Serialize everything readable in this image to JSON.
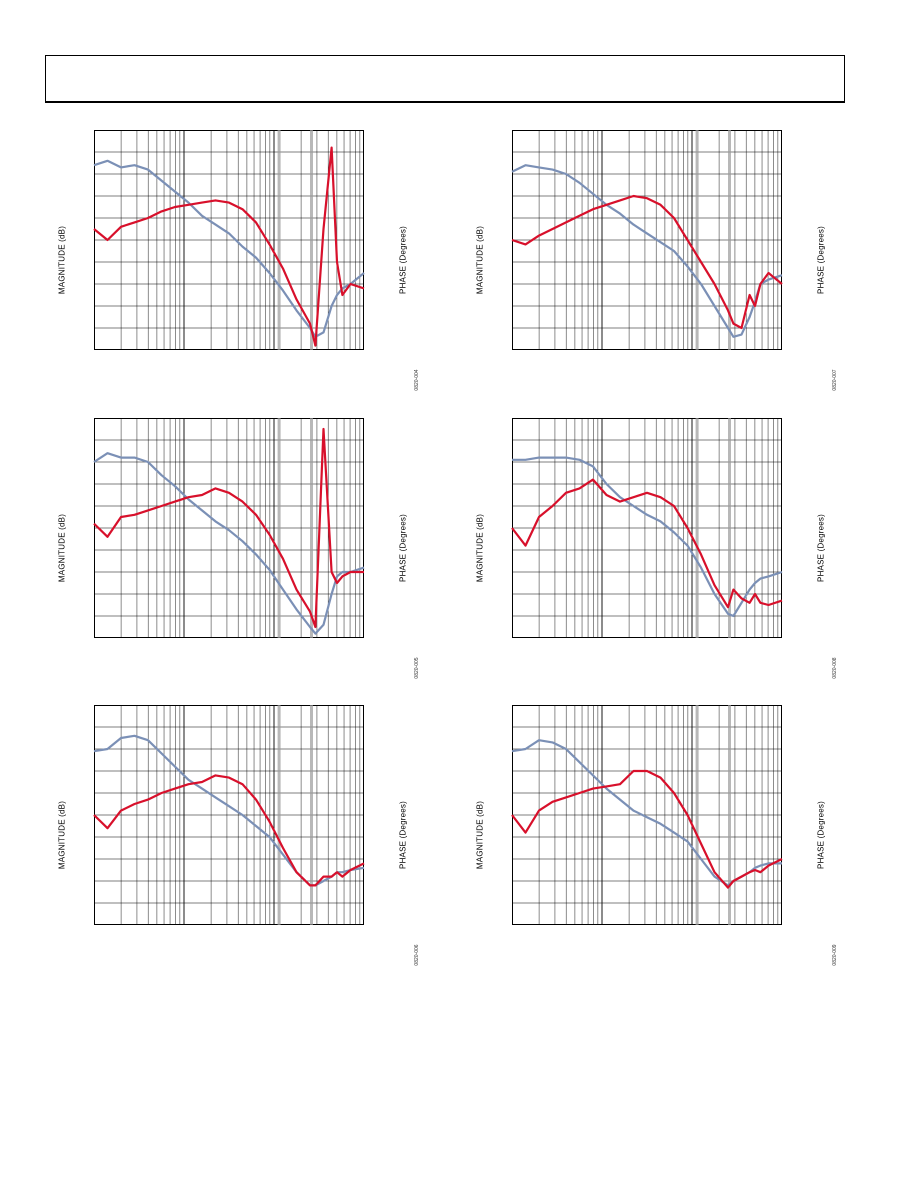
{
  "colors": {
    "magnitude": "#7b90b6",
    "phase": "#d8102b",
    "grid": "#000000",
    "highlight": "#9a9a9a"
  },
  "chart_data": [
    {
      "type": "line",
      "xscale": "log",
      "grid": true,
      "ylabel_left": "MAGNITUDE (dB)",
      "ylabel_right": "PHASE (Degrees)",
      "figure_id": "0820-004",
      "x": [
        0,
        0.05,
        0.1,
        0.15,
        0.2,
        0.25,
        0.3,
        0.35,
        0.4,
        0.45,
        0.5,
        0.55,
        0.6,
        0.65,
        0.7,
        0.75,
        0.8,
        0.82,
        0.85,
        0.88,
        0.9,
        0.92,
        0.95,
        1.0
      ],
      "series": [
        {
          "color": "magnitude",
          "values": [
            0.84,
            0.86,
            0.83,
            0.84,
            0.82,
            0.77,
            0.72,
            0.67,
            0.61,
            0.57,
            0.53,
            0.47,
            0.42,
            0.35,
            0.27,
            0.18,
            0.1,
            0.06,
            0.08,
            0.2,
            0.25,
            0.28,
            0.3,
            0.35
          ]
        },
        {
          "color": "phase",
          "values": [
            0.55,
            0.5,
            0.56,
            0.58,
            0.6,
            0.63,
            0.65,
            0.66,
            0.67,
            0.68,
            0.67,
            0.64,
            0.58,
            0.48,
            0.37,
            0.23,
            0.12,
            0.02,
            0.55,
            0.92,
            0.4,
            0.25,
            0.3,
            0.28
          ]
        }
      ]
    },
    {
      "type": "line",
      "xscale": "log",
      "grid": true,
      "ylabel_left": "MAGNITUDE (dB)",
      "ylabel_right": "PHASE (Degrees)",
      "figure_id": "0820-007",
      "x": [
        0,
        0.05,
        0.1,
        0.15,
        0.2,
        0.25,
        0.3,
        0.35,
        0.4,
        0.45,
        0.5,
        0.55,
        0.6,
        0.65,
        0.7,
        0.75,
        0.8,
        0.82,
        0.85,
        0.88,
        0.9,
        0.92,
        0.95,
        1.0
      ],
      "series": [
        {
          "color": "magnitude",
          "values": [
            0.81,
            0.84,
            0.83,
            0.82,
            0.8,
            0.76,
            0.71,
            0.66,
            0.62,
            0.57,
            0.53,
            0.49,
            0.45,
            0.38,
            0.3,
            0.2,
            0.1,
            0.06,
            0.07,
            0.15,
            0.22,
            0.3,
            0.32,
            0.34
          ]
        },
        {
          "color": "phase",
          "values": [
            0.5,
            0.48,
            0.52,
            0.55,
            0.58,
            0.61,
            0.64,
            0.66,
            0.68,
            0.7,
            0.69,
            0.66,
            0.6,
            0.5,
            0.4,
            0.3,
            0.18,
            0.12,
            0.1,
            0.25,
            0.2,
            0.3,
            0.35,
            0.3
          ]
        }
      ]
    },
    {
      "type": "line",
      "xscale": "log",
      "grid": true,
      "ylabel_left": "MAGNITUDE (dB)",
      "ylabel_right": "PHASE (Degrees)",
      "figure_id": "0820-005",
      "x": [
        0,
        0.05,
        0.1,
        0.15,
        0.2,
        0.25,
        0.3,
        0.35,
        0.4,
        0.45,
        0.5,
        0.55,
        0.6,
        0.65,
        0.7,
        0.75,
        0.8,
        0.82,
        0.85,
        0.88,
        0.9,
        0.92,
        0.95,
        1.0
      ],
      "series": [
        {
          "color": "magnitude",
          "values": [
            0.8,
            0.84,
            0.82,
            0.82,
            0.8,
            0.74,
            0.69,
            0.63,
            0.58,
            0.53,
            0.49,
            0.44,
            0.38,
            0.31,
            0.22,
            0.13,
            0.05,
            0.02,
            0.06,
            0.2,
            0.28,
            0.3,
            0.3,
            0.32
          ]
        },
        {
          "color": "phase",
          "values": [
            0.52,
            0.46,
            0.55,
            0.56,
            0.58,
            0.6,
            0.62,
            0.64,
            0.65,
            0.68,
            0.66,
            0.62,
            0.56,
            0.47,
            0.36,
            0.22,
            0.12,
            0.05,
            0.95,
            0.3,
            0.25,
            0.28,
            0.3,
            0.3
          ]
        }
      ]
    },
    {
      "type": "line",
      "xscale": "log",
      "grid": true,
      "ylabel_left": "MAGNITUDE (dB)",
      "ylabel_right": "PHASE (Degrees)",
      "figure_id": "0820-008",
      "x": [
        0,
        0.05,
        0.1,
        0.15,
        0.2,
        0.25,
        0.3,
        0.35,
        0.4,
        0.45,
        0.5,
        0.55,
        0.6,
        0.65,
        0.7,
        0.75,
        0.8,
        0.82,
        0.85,
        0.88,
        0.9,
        0.92,
        0.95,
        1.0
      ],
      "series": [
        {
          "color": "magnitude",
          "values": [
            0.81,
            0.81,
            0.82,
            0.82,
            0.82,
            0.81,
            0.78,
            0.7,
            0.64,
            0.6,
            0.56,
            0.53,
            0.48,
            0.42,
            0.32,
            0.2,
            0.11,
            0.1,
            0.16,
            0.22,
            0.25,
            0.27,
            0.28,
            0.3
          ]
        },
        {
          "color": "phase",
          "values": [
            0.5,
            0.42,
            0.55,
            0.6,
            0.66,
            0.68,
            0.72,
            0.65,
            0.62,
            0.64,
            0.66,
            0.64,
            0.6,
            0.5,
            0.38,
            0.24,
            0.14,
            0.22,
            0.18,
            0.16,
            0.2,
            0.16,
            0.15,
            0.17
          ]
        }
      ]
    },
    {
      "type": "line",
      "xscale": "log",
      "grid": true,
      "ylabel_left": "MAGNITUDE (dB)",
      "ylabel_right": "PHASE (Degrees)",
      "figure_id": "0820-006",
      "x": [
        0,
        0.05,
        0.1,
        0.15,
        0.2,
        0.25,
        0.3,
        0.35,
        0.4,
        0.45,
        0.5,
        0.55,
        0.6,
        0.65,
        0.7,
        0.75,
        0.8,
        0.82,
        0.85,
        0.88,
        0.9,
        0.92,
        0.95,
        1.0
      ],
      "series": [
        {
          "color": "magnitude",
          "values": [
            0.79,
            0.8,
            0.85,
            0.86,
            0.84,
            0.78,
            0.72,
            0.66,
            0.62,
            0.58,
            0.54,
            0.5,
            0.45,
            0.4,
            0.32,
            0.24,
            0.18,
            0.18,
            0.2,
            0.22,
            0.24,
            0.24,
            0.25,
            0.26
          ]
        },
        {
          "color": "phase",
          "values": [
            0.5,
            0.44,
            0.52,
            0.55,
            0.57,
            0.6,
            0.62,
            0.64,
            0.65,
            0.68,
            0.67,
            0.64,
            0.57,
            0.47,
            0.35,
            0.24,
            0.18,
            0.18,
            0.22,
            0.22,
            0.24,
            0.22,
            0.25,
            0.28
          ]
        }
      ]
    },
    {
      "type": "line",
      "xscale": "log",
      "grid": true,
      "ylabel_left": "MAGNITUDE (dB)",
      "ylabel_right": "PHASE (Degrees)",
      "figure_id": "0820-009",
      "x": [
        0,
        0.05,
        0.1,
        0.15,
        0.2,
        0.25,
        0.3,
        0.35,
        0.4,
        0.45,
        0.5,
        0.55,
        0.6,
        0.65,
        0.7,
        0.75,
        0.8,
        0.82,
        0.85,
        0.88,
        0.9,
        0.92,
        0.95,
        1.0
      ],
      "series": [
        {
          "color": "magnitude",
          "values": [
            0.79,
            0.8,
            0.84,
            0.83,
            0.8,
            0.74,
            0.68,
            0.62,
            0.57,
            0.52,
            0.49,
            0.46,
            0.42,
            0.38,
            0.3,
            0.22,
            0.18,
            0.2,
            0.22,
            0.24,
            0.26,
            0.27,
            0.28,
            0.28
          ]
        },
        {
          "color": "phase",
          "values": [
            0.5,
            0.42,
            0.52,
            0.56,
            0.58,
            0.6,
            0.62,
            0.63,
            0.64,
            0.7,
            0.7,
            0.67,
            0.6,
            0.5,
            0.37,
            0.24,
            0.17,
            0.2,
            0.22,
            0.24,
            0.25,
            0.24,
            0.27,
            0.3
          ]
        }
      ]
    }
  ]
}
